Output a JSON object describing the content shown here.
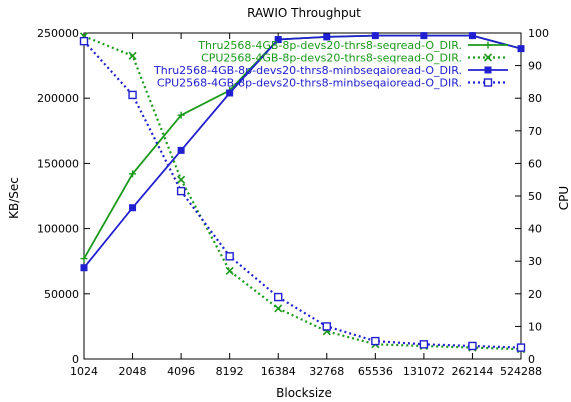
{
  "chart_data": {
    "type": "line",
    "title": "RAWIO Throughput",
    "xlabel": "Blocksize",
    "ylabel": "KB/Sec",
    "y2label": "CPU",
    "categories": [
      "1024",
      "2048",
      "4096",
      "8192",
      "16384",
      "32768",
      "65536",
      "131072",
      "262144",
      "524288"
    ],
    "ylim": [
      0,
      250000
    ],
    "y2lim": [
      0,
      100
    ],
    "yticks": [
      "0",
      "50000",
      "100000",
      "150000",
      "200000",
      "250000"
    ],
    "y2ticks": [
      "0",
      "10",
      "20",
      "30",
      "40",
      "50",
      "60",
      "70",
      "80",
      "90",
      "100"
    ],
    "grid": false,
    "legend_position": "top-right",
    "series": [
      {
        "name": "Thru2568-4GB-8p-devs20-thrs8-seqread-O_DIR.",
        "axis": "left",
        "color": "#1a9a1a",
        "style": "solid",
        "marker": "plus",
        "values": [
          77000,
          142000,
          187000,
          206000,
          245000,
          247000,
          248000,
          248000,
          248000,
          238000
        ]
      },
      {
        "name": "CPU2568-4GB-8p-devs20-thrs8-seqread-O_DIR.",
        "axis": "right",
        "color": "#1a9a1a",
        "style": "dotted",
        "marker": "x",
        "values": [
          99,
          93,
          55,
          27,
          15.5,
          8.5,
          4.5,
          4,
          3.5,
          3
        ]
      },
      {
        "name": "Thru2568-4GB-8p-devs20-thrs8-minbseqaioread-O_DIR.",
        "axis": "left",
        "color": "#2020d0",
        "style": "solid",
        "marker": "square-filled",
        "values": [
          70000,
          116000,
          160000,
          204000,
          245000,
          247000,
          248000,
          248000,
          248000,
          238000
        ]
      },
      {
        "name": "CPU2568-4GB-8p-devs20-thrs8-minbseqaioread-O_DIR.",
        "axis": "right",
        "color": "#2020d0",
        "style": "dotted",
        "marker": "square-open",
        "values": [
          97.5,
          81,
          51.5,
          31.5,
          19,
          10,
          5.5,
          4.5,
          4,
          3.5
        ]
      }
    ]
  }
}
